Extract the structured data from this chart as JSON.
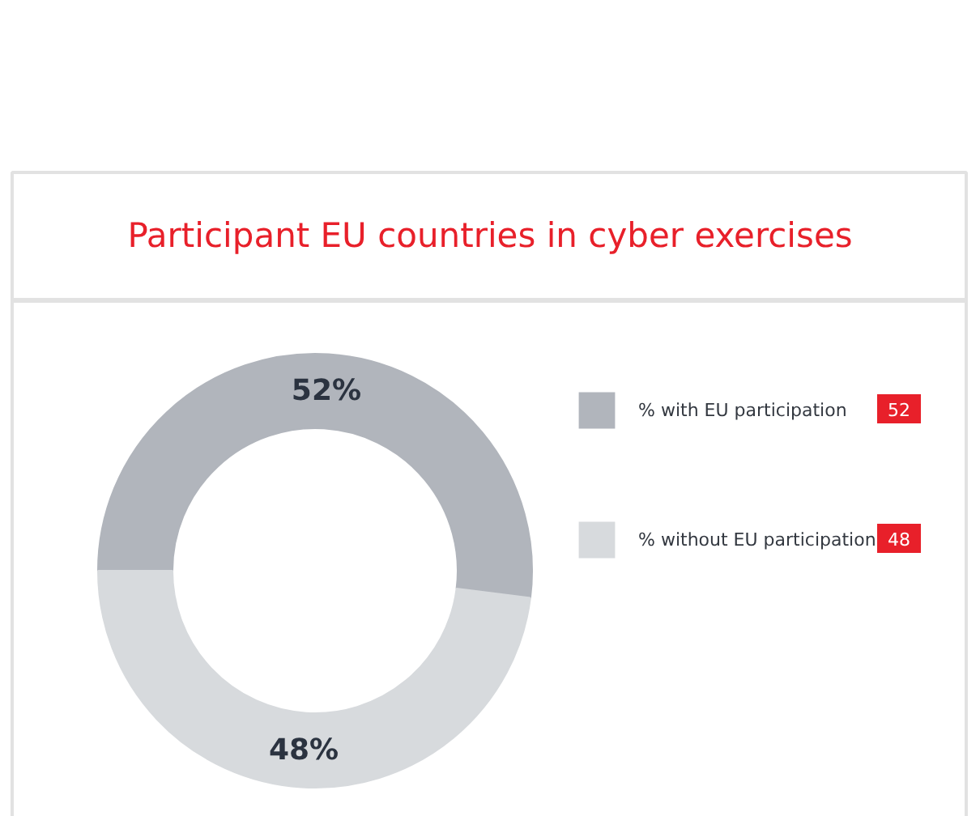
{
  "chart_data": {
    "type": "donut",
    "title": "Participant EU countries in cyber exercises",
    "categories": [
      "% with EU participation",
      "% without EU participation"
    ],
    "values": [
      52,
      48
    ],
    "colors": [
      "#b1b5bc",
      "#d7dadd"
    ],
    "value_labels": [
      "52%",
      "48%"
    ],
    "legend": "right",
    "annotations": [
      "52",
      "48"
    ]
  }
}
